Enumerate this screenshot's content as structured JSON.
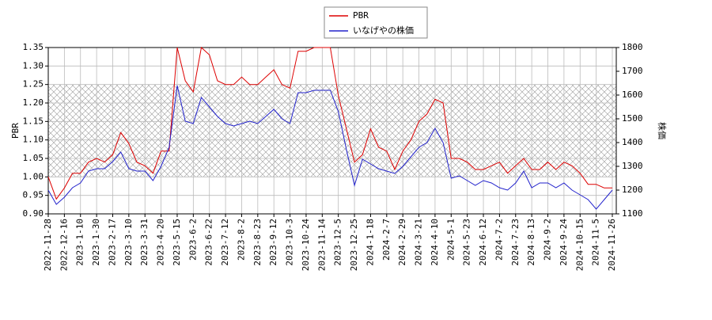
{
  "chart_data": {
    "type": "line",
    "y_label": "PBR",
    "y2_label": "株価",
    "x": [
      "2022-11-28",
      null,
      "2022-12-16",
      null,
      "2023-1-10",
      null,
      "2023-1-30",
      null,
      "2023-2-17",
      null,
      "2023-3-10",
      null,
      "2023-3-31",
      null,
      "2023-4-20",
      null,
      "2023-5-15",
      null,
      "2023-6-2",
      null,
      "2023-6-22",
      null,
      "2023-7-12",
      null,
      "2023-8-2",
      null,
      "2023-8-23",
      null,
      "2023-9-12",
      null,
      "2023-10-3",
      null,
      "2023-10-24",
      null,
      "2023-11-14",
      null,
      "2023-12-5",
      null,
      "2023-12-25",
      null,
      "2024-1-18",
      null,
      "2024-2-7",
      null,
      "2024-2-29",
      null,
      "2024-3-21",
      null,
      "2024-4-10",
      null,
      "2024-5-1",
      null,
      "2024-5-23",
      null,
      "2024-6-12",
      null,
      "2024-7-2",
      null,
      "2024-7-23",
      null,
      "2024-8-13",
      null,
      "2024-9-2",
      null,
      "2024-9-24",
      null,
      "2024-10-15",
      null,
      "2024-11-5",
      null,
      "2024-11-26"
    ],
    "series": [
      {
        "name": "PBR",
        "color": "#dd0000",
        "values": [
          1.0,
          0.94,
          0.97,
          1.01,
          1.01,
          1.04,
          1.05,
          1.04,
          1.06,
          1.12,
          1.09,
          1.04,
          1.03,
          1.01,
          1.07,
          1.07,
          1.35,
          1.26,
          1.23,
          1.35,
          1.33,
          1.26,
          1.25,
          1.25,
          1.27,
          1.25,
          1.25,
          1.27,
          1.29,
          1.25,
          1.24,
          1.34,
          1.34,
          1.35,
          1.35,
          1.35,
          1.22,
          1.13,
          1.04,
          1.06,
          1.13,
          1.08,
          1.07,
          1.02,
          1.07,
          1.1,
          1.15,
          1.17,
          1.21,
          1.2,
          1.05,
          1.05,
          1.04,
          1.02,
          1.02,
          1.03,
          1.04,
          1.01,
          1.03,
          1.05,
          1.02,
          1.02,
          1.04,
          1.02,
          1.04,
          1.03,
          1.01,
          0.98,
          0.98,
          0.97,
          0.97
        ]
      },
      {
        "name": "いなげやの株価",
        "color": "#2222cc",
        "axis": "y2",
        "values": [
          1200,
          1140,
          1170,
          1210,
          1230,
          1280,
          1290,
          1290,
          1320,
          1360,
          1290,
          1280,
          1280,
          1240,
          1300,
          1380,
          1640,
          1490,
          1480,
          1590,
          1550,
          1510,
          1480,
          1470,
          1480,
          1490,
          1480,
          1510,
          1540,
          1500,
          1480,
          1610,
          1610,
          1620,
          1620,
          1620,
          1530,
          1370,
          1220,
          1330,
          1310,
          1290,
          1280,
          1270,
          1300,
          1340,
          1380,
          1400,
          1460,
          1400,
          1250,
          1260,
          1240,
          1220,
          1240,
          1230,
          1210,
          1200,
          1230,
          1280,
          1210,
          1230,
          1230,
          1210,
          1230,
          1200,
          1180,
          1160,
          1120,
          1160,
          1200
        ]
      }
    ],
    "ylim": [
      0.9,
      1.35
    ],
    "yticks": [
      {
        "value": 0.9,
        "label": "0.90"
      },
      0.95,
      {
        "value": 1.0,
        "label": "1.00"
      },
      1.05,
      {
        "value": 1.1,
        "label": "1.10"
      },
      1.15,
      {
        "value": 1.2,
        "label": "1.20"
      },
      1.25,
      {
        "value": 1.3,
        "label": "1.30"
      },
      1.35
    ],
    "y2lim": [
      1100,
      1800
    ],
    "y2ticks": [
      1100,
      1200,
      1300,
      1400,
      1500,
      1600,
      1700,
      1800
    ],
    "shaded_range": [
      1.0,
      1.25
    ],
    "grid": true,
    "legend": "top-center"
  }
}
